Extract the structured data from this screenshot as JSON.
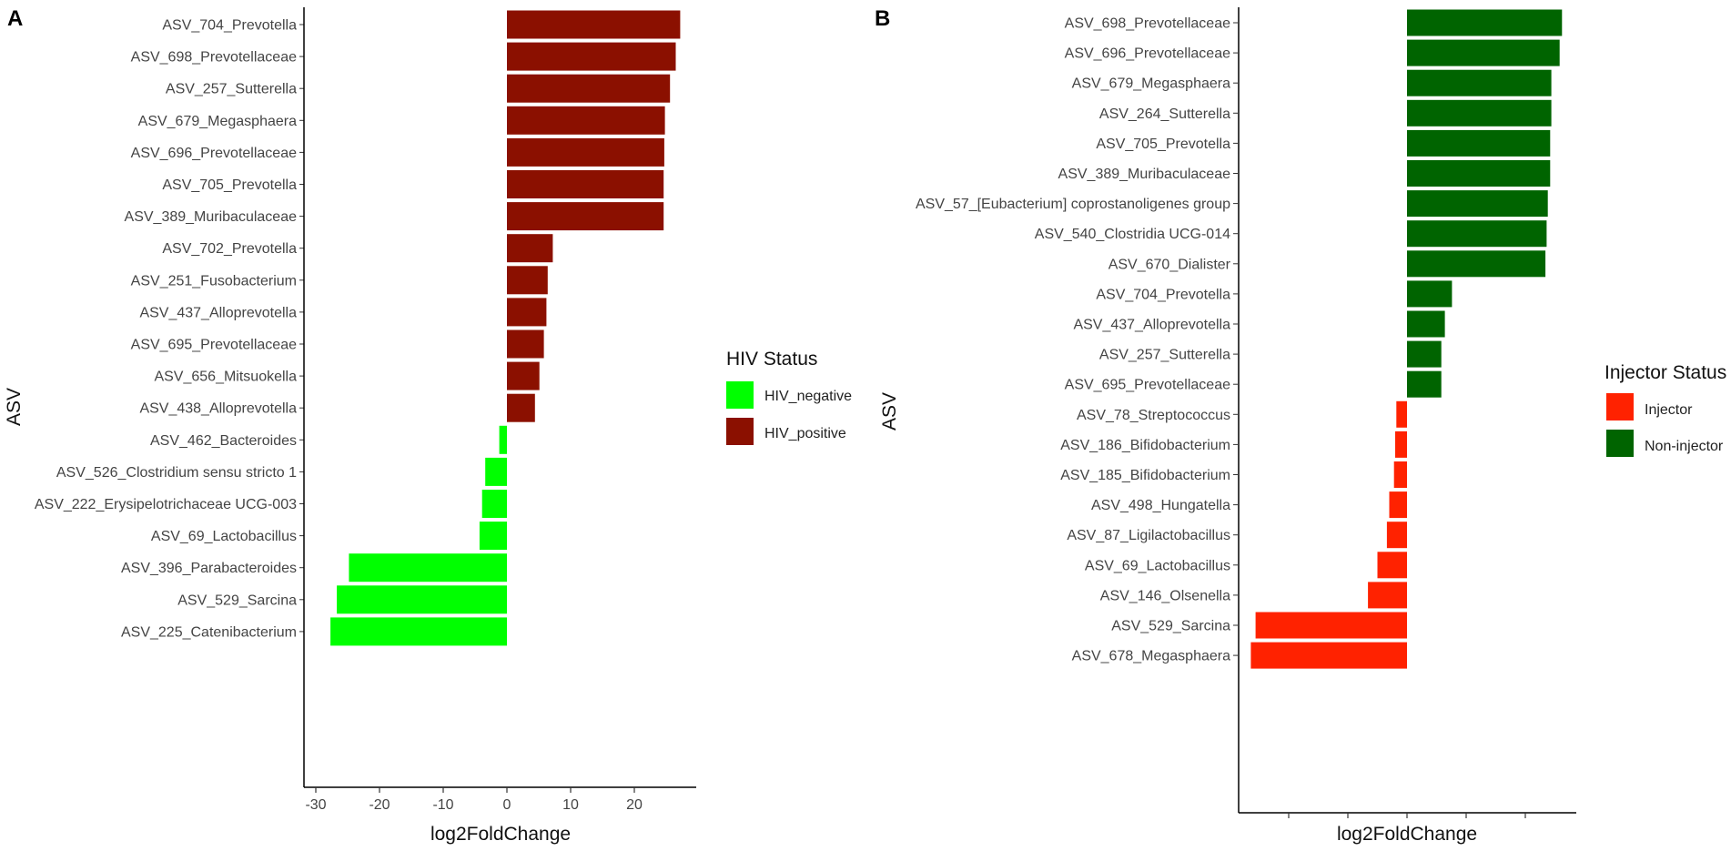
{
  "chart_data": [
    {
      "type": "bar",
      "orientation": "horizontal",
      "panel": "A",
      "title": "",
      "xlabel": "log2FoldChange",
      "ylabel": "ASV",
      "xlim": [
        -31,
        30
      ],
      "xticks": [
        -30,
        -20,
        -10,
        0,
        10,
        20
      ],
      "xtick_labels": [
        "-30",
        "-20",
        "-10",
        "0",
        "10",
        "20"
      ],
      "grid": false,
      "legend": {
        "title": "HIV Status",
        "position": "right",
        "entries": [
          {
            "name": "HIV_negative",
            "color": "#00FF00"
          },
          {
            "name": "HIV_positive",
            "color": "#8B1000"
          }
        ]
      },
      "categories": [
        "ASV_704_Prevotella",
        "ASV_698_Prevotellaceae",
        "ASV_257_Sutterella",
        "ASV_679_Megasphaera",
        "ASV_696_Prevotellaceae",
        "ASV_705_Prevotella",
        "ASV_389_Muribaculaceae",
        "ASV_702_Prevotella",
        "ASV_251_Fusobacterium",
        "ASV_437_Alloprevotella",
        "ASV_695_Prevotellaceae",
        "ASV_656_Mitsuokella",
        "ASV_438_Alloprevotella",
        "ASV_462_Bacteroides",
        "ASV_526_Clostridium sensu stricto 1",
        "ASV_222_Erysipelotrichaceae UCG-003",
        "ASV_69_Lactobacillus",
        "ASV_396_Parabacteroides",
        "ASV_529_Sarcina",
        "ASV_225_Catenibacterium"
      ],
      "values": [
        27.2,
        26.5,
        25.6,
        24.8,
        24.7,
        24.6,
        24.6,
        7.2,
        6.4,
        6.2,
        5.8,
        5.1,
        4.4,
        -1.2,
        -3.4,
        -3.9,
        -4.3,
        -24.8,
        -26.7,
        -27.7
      ],
      "groups": [
        "HIV_positive",
        "HIV_positive",
        "HIV_positive",
        "HIV_positive",
        "HIV_positive",
        "HIV_positive",
        "HIV_positive",
        "HIV_positive",
        "HIV_positive",
        "HIV_positive",
        "HIV_positive",
        "HIV_positive",
        "HIV_positive",
        "HIV_negative",
        "HIV_negative",
        "HIV_negative",
        "HIV_negative",
        "HIV_negative",
        "HIV_negative",
        "HIV_negative"
      ]
    },
    {
      "type": "bar",
      "orientation": "horizontal",
      "panel": "B",
      "title": "",
      "xlabel": "log2FoldChange",
      "ylabel": "ASV",
      "xlim": [
        -1.35,
        1.42
      ],
      "xticks": [
        -1,
        -0.5,
        0,
        0.5,
        1
      ],
      "xtick_labels": [],
      "grid": false,
      "legend": {
        "title": "Injector Status",
        "position": "right",
        "entries": [
          {
            "name": "Injector",
            "color": "#FF2200"
          },
          {
            "name": "Non-injector",
            "color": "#006400"
          }
        ]
      },
      "categories": [
        "ASV_698_Prevotellaceae",
        "ASV_696_Prevotellaceae",
        "ASV_679_Megasphaera",
        "ASV_264_Sutterella",
        "ASV_705_Prevotella",
        "ASV_389_Muribaculaceae",
        "ASV_57_[Eubacterium] coprostanoligenes group",
        "ASV_540_Clostridia UCG-014",
        "ASV_670_Dialister",
        "ASV_704_Prevotella",
        "ASV_437_Alloprevotella",
        "ASV_257_Sutterella",
        "ASV_695_Prevotellaceae",
        "ASV_78_Streptococcus",
        "ASV_186_Bifidobacterium",
        "ASV_185_Bifidobacterium",
        "ASV_498_Hungatella",
        "ASV_87_Ligilactobacillus",
        "ASV_69_Lactobacillus",
        "ASV_146_Olsenella",
        "ASV_529_Sarcina",
        "ASV_678_Megasphaera"
      ],
      "values": [
        1.31,
        1.29,
        1.22,
        1.22,
        1.21,
        1.21,
        1.19,
        1.18,
        1.17,
        0.38,
        0.32,
        0.29,
        0.29,
        -0.09,
        -0.1,
        -0.11,
        -0.15,
        -0.17,
        -0.25,
        -0.33,
        -1.28,
        -1.32
      ],
      "groups": [
        "Non-injector",
        "Non-injector",
        "Non-injector",
        "Non-injector",
        "Non-injector",
        "Non-injector",
        "Non-injector",
        "Non-injector",
        "Non-injector",
        "Non-injector",
        "Non-injector",
        "Non-injector",
        "Non-injector",
        "Injector",
        "Injector",
        "Injector",
        "Injector",
        "Injector",
        "Injector",
        "Injector",
        "Injector",
        "Injector"
      ]
    }
  ]
}
